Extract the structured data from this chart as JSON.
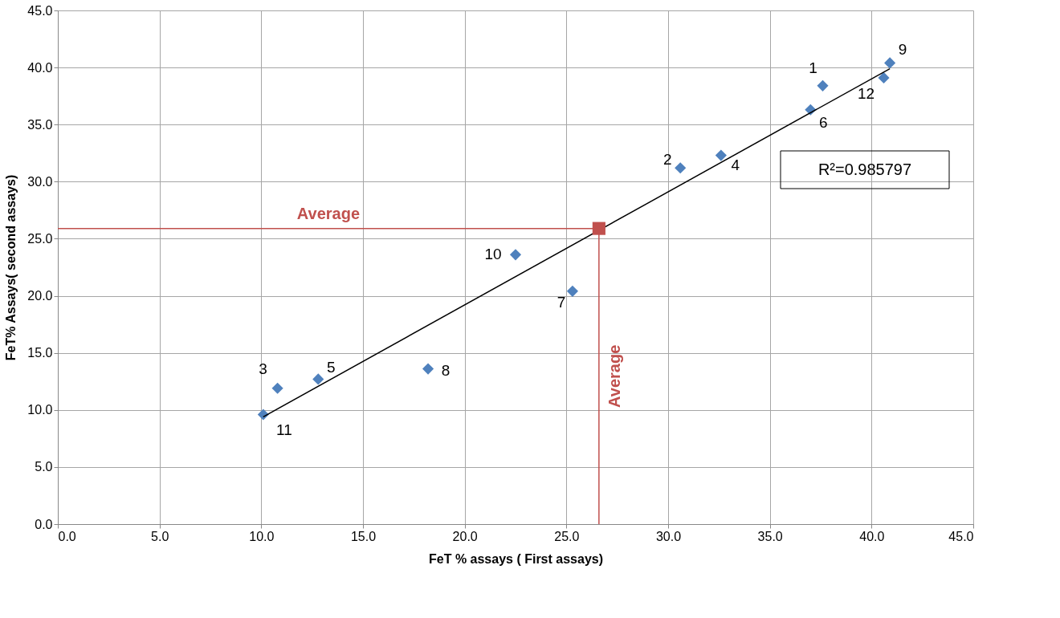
{
  "chart_data": {
    "type": "scatter",
    "xlabel": "FeT % assays ( First assays)",
    "ylabel": "FeT% Assays( second assays)",
    "xlim": [
      0,
      45
    ],
    "ylim": [
      0,
      45
    ],
    "xticks": [
      {
        "value": 0,
        "label": "0.0"
      },
      {
        "value": 5,
        "label": "5.0"
      },
      {
        "value": 10,
        "label": "10.0"
      },
      {
        "value": 15,
        "label": "15.0"
      },
      {
        "value": 20,
        "label": "20.0"
      },
      {
        "value": 25,
        "label": "25.0"
      },
      {
        "value": 30,
        "label": "30.0"
      },
      {
        "value": 35,
        "label": "35.0"
      },
      {
        "value": 40,
        "label": "40.0"
      },
      {
        "value": 45,
        "label": "45.0"
      }
    ],
    "yticks": [
      {
        "value": 0,
        "label": "0.0"
      },
      {
        "value": 5,
        "label": "5.0"
      },
      {
        "value": 10,
        "label": "10.0"
      },
      {
        "value": 15,
        "label": "15.0"
      },
      {
        "value": 20,
        "label": "20.0"
      },
      {
        "value": 25,
        "label": "25.0"
      },
      {
        "value": 30,
        "label": "30.0"
      },
      {
        "value": 35,
        "label": "35.0"
      },
      {
        "value": 40,
        "label": "40.0"
      },
      {
        "value": 45,
        "label": "45.0"
      }
    ],
    "grid": true,
    "series": [
      {
        "marker": "diamond",
        "color": "#4f81bd",
        "x": [
          37.6,
          30.6,
          10.8,
          32.6,
          12.8,
          37.0,
          25.3,
          18.2,
          40.9,
          22.5,
          10.1,
          40.6
        ],
        "values": [
          38.4,
          31.2,
          11.9,
          32.3,
          12.7,
          36.3,
          20.4,
          13.6,
          40.4,
          23.6,
          9.6,
          39.1
        ]
      },
      {
        "type": "line",
        "line_style": "solid",
        "marker": "none",
        "color": "#000000",
        "x": [
          10.1,
          40.9
        ],
        "values": [
          9.4,
          39.9
        ]
      },
      {
        "marker": "square",
        "color": "#c0504d",
        "x": [
          26.6
        ],
        "values": [
          25.9
        ]
      }
    ],
    "ref_lines": [
      {
        "axis": "y",
        "value": 25.9,
        "label": "Average",
        "color": "#c0504d"
      },
      {
        "axis": "x",
        "value": 26.6,
        "label": "Average",
        "color": "#c0504d"
      }
    ],
    "annotations": [
      {
        "text": "1",
        "x": 37.6,
        "y": 38.4
      },
      {
        "text": "2",
        "x": 30.6,
        "y": 31.2
      },
      {
        "text": "3",
        "x": 10.8,
        "y": 11.9
      },
      {
        "text": "4",
        "x": 32.6,
        "y": 32.3
      },
      {
        "text": "5",
        "x": 12.8,
        "y": 12.7
      },
      {
        "text": "6",
        "x": 37.0,
        "y": 36.3
      },
      {
        "text": "7",
        "x": 25.3,
        "y": 20.4
      },
      {
        "text": "8",
        "x": 18.2,
        "y": 13.6
      },
      {
        "text": "9",
        "x": 40.9,
        "y": 40.4
      },
      {
        "text": "10",
        "x": 22.5,
        "y": 23.6
      },
      {
        "text": "11",
        "x": 10.1,
        "y": 9.6
      },
      {
        "text": "12",
        "x": 40.6,
        "y": 39.1
      },
      "R²=0.985797"
    ]
  }
}
